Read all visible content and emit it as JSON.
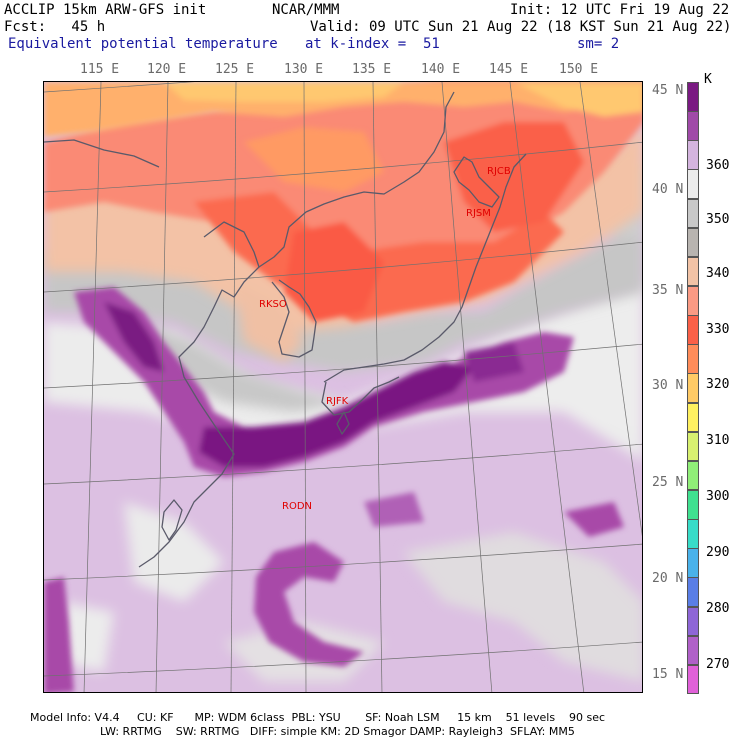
{
  "header": {
    "line1_left": "ACCLIP 15km ARW-GFS init",
    "line1_center": "NCAR/MMM",
    "line1_right": "Init: 12 UTC Fri 19 Aug 22",
    "line2_left": "Fcst:   45 h",
    "line2_right": "Valid: 09 UTC Sun 21 Aug 22 (18 KST Sun 21 Aug 22)",
    "line3_left": "Equivalent potential temperature",
    "line3_center": "at k-index =  51",
    "line3_right": "sm= 2"
  },
  "lon_labels": [
    "115 E",
    "120 E",
    "125 E",
    "130 E",
    "135 E",
    "140 E",
    "145 E",
    "150 E"
  ],
  "lat_labels": [
    "45 N",
    "40 N",
    "35 N",
    "30 N",
    "25 N",
    "20 N",
    "15 N"
  ],
  "stations": [
    "RJCB",
    "RJSM",
    "RKSO",
    "RJFK",
    "RODN"
  ],
  "colorbar": {
    "unit": "K",
    "labels": [
      "360",
      "350",
      "340",
      "330",
      "320",
      "310",
      "300",
      "290",
      "280",
      "270"
    ],
    "colors": [
      "#7a1a82",
      "#a04aa8",
      "#d4b4de",
      "#ececec",
      "#c8c8c8",
      "#b8b4b0",
      "#f2c3a6",
      "#fa9a84",
      "#fa6048",
      "#ff8c5a",
      "#ffca66",
      "#fff060",
      "#d8f070",
      "#90ee78",
      "#40e090",
      "#38dcc8",
      "#4ab2ea",
      "#5a7ee6",
      "#8e66d6",
      "#b060c8",
      "#e060d8"
    ]
  },
  "footer": {
    "line1": "Model Info: V4.4     CU: KF      MP: WDM 6class  PBL: YSU       SF: Noah LSM     15 km    51 levels    90 sec",
    "line2": "LW: RRTMG    SW: RRTMG   DIFF: simple KM: 2D Smagor DAMP: Rayleigh3  SFLAY: MM5"
  }
}
